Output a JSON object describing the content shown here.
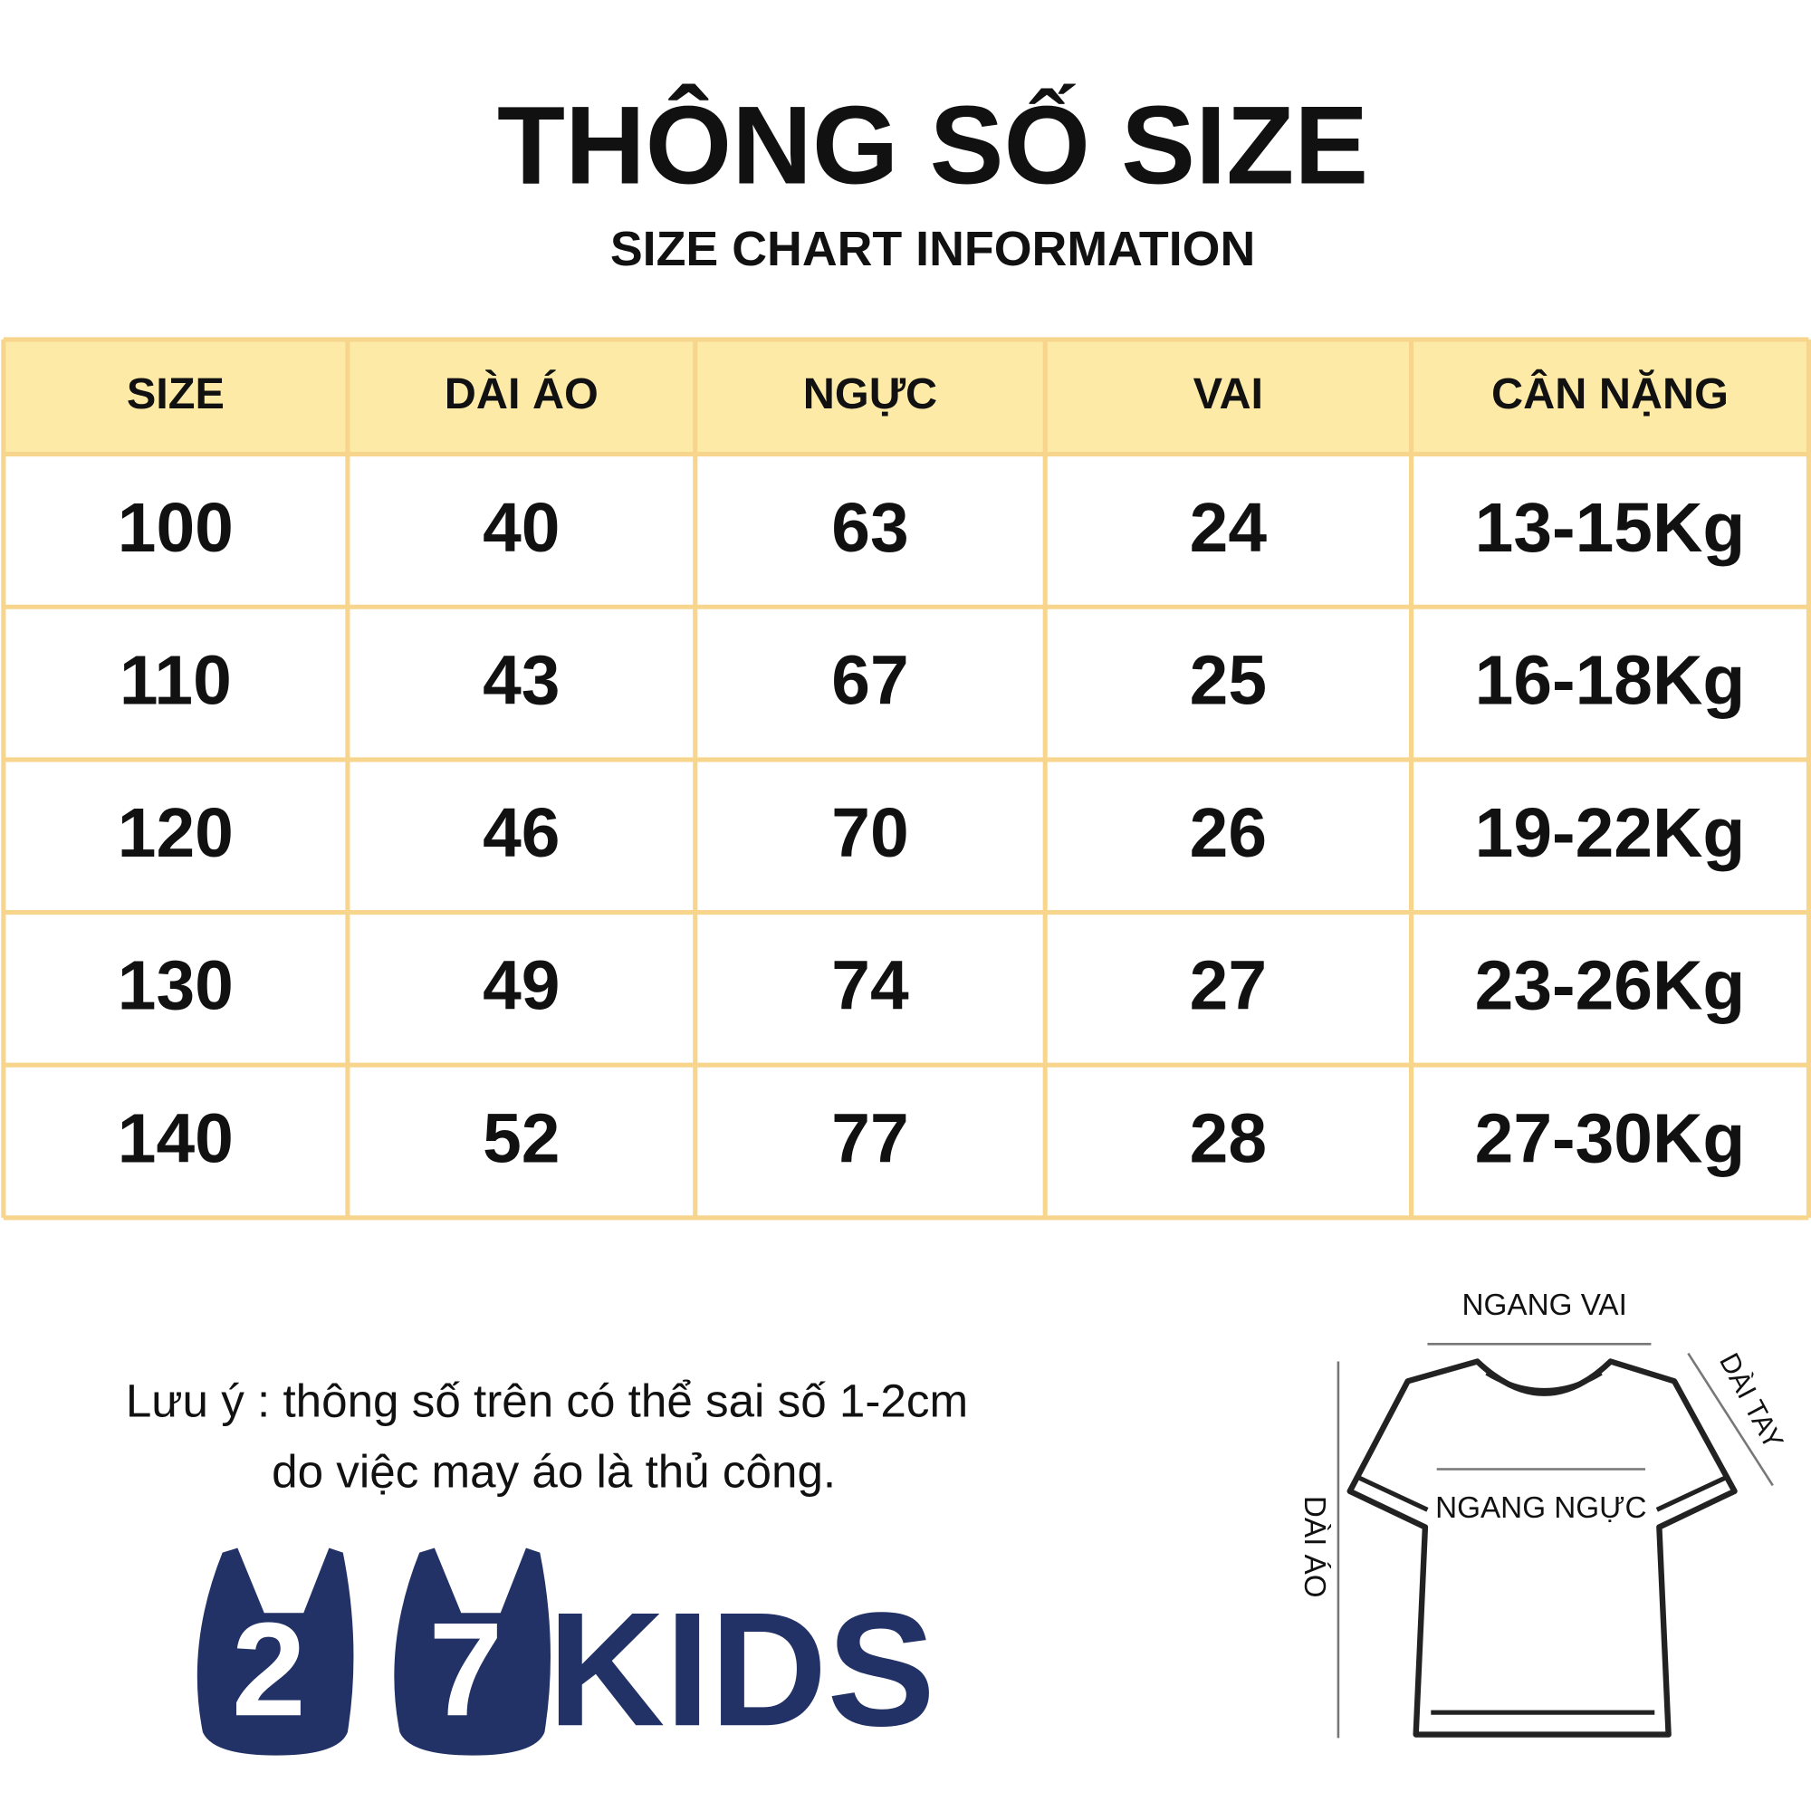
{
  "header": {
    "title": "THÔNG SỐ SIZE",
    "subtitle": "SIZE CHART INFORMATION"
  },
  "table": {
    "columns": [
      "SIZE",
      "DÀI ÁO",
      "NGỰC",
      "VAI",
      "CÂN NẶNG"
    ],
    "rows": [
      [
        "100",
        "40",
        "63",
        "24",
        "13-15Kg"
      ],
      [
        "110",
        "43",
        "67",
        "25",
        "16-18Kg"
      ],
      [
        "120",
        "46",
        "70",
        "26",
        "19-22Kg"
      ],
      [
        "130",
        "49",
        "74",
        "27",
        "23-26Kg"
      ],
      [
        "140",
        "52",
        "77",
        "28",
        "27-30Kg"
      ]
    ]
  },
  "note": {
    "lines": [
      "Lưu ý : thông số trên có thể sai số 1-2cm",
      "do việc may áo là thủ công."
    ]
  },
  "logo": {
    "digits": [
      "2",
      "7"
    ],
    "text": "KIDS"
  },
  "diagram": {
    "labels": [
      "NGANG VAI",
      "DÀI TAY",
      "NGANG NGỰC",
      "DÀI ÁO"
    ]
  }
}
